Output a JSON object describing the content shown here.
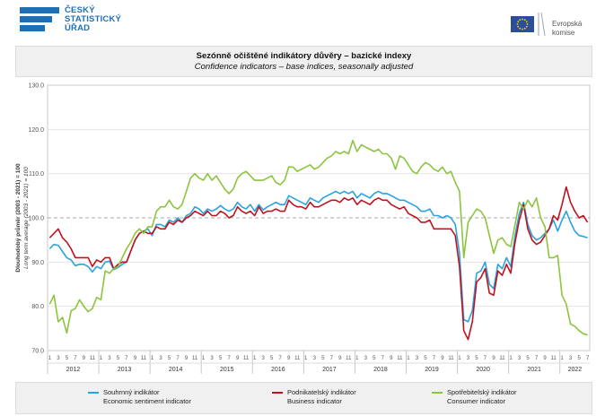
{
  "header": {
    "logo_lines": [
      "ČESKÝ",
      "STATISTICKÝ",
      "ÚŘAD"
    ],
    "eu_text_lines": [
      "Evropská",
      "komise"
    ]
  },
  "title": {
    "cz": "Sezónně očištěné indikátory důvěry – bazické indexy",
    "en": "Confidence indicators – base indices, seasonally adjusted"
  },
  "legend": {
    "items": [
      {
        "label_cz": "Souhrnný indikátor",
        "label_en": "Economic sentiment indicator",
        "color": "#29a3e0"
      },
      {
        "label_cz": "Podnikatelský indikátor",
        "label_en": "Business indicator",
        "color": "#c0121d"
      },
      {
        "label_cz": "Spotřebitelský indikátor",
        "label_en": "Consumer indicator",
        "color": "#8cc43f"
      }
    ]
  },
  "chart_data": {
    "type": "line",
    "ylabel_main": "Dlouhodobý průměr (2003 - 2021) = 100",
    "ylabel_sub": "Long term average (2003 - 2021) = 100",
    "ylim": [
      70,
      130
    ],
    "yticks": [
      "70.0",
      "80.0",
      "90.0",
      "100.0",
      "110.0",
      "120.0",
      "130.0"
    ],
    "reference_line": 100,
    "years": [
      "2012",
      "2013",
      "2014",
      "2015",
      "2016",
      "2017",
      "2018",
      "2019",
      "2020",
      "2021",
      "2022"
    ],
    "start": "2012-01",
    "end": "2022-07",
    "month_tick_labels": [
      "1",
      "3",
      "5",
      "7",
      "9",
      "11"
    ],
    "series": [
      {
        "name": "Souhrnný indikátor / Economic sentiment indicator",
        "color": "#29a3e0",
        "values": [
          93.0,
          94.0,
          93.8,
          92.4,
          91.0,
          90.5,
          89.2,
          89.5,
          89.5,
          89.0,
          87.8,
          89.0,
          88.5,
          90.0,
          90.2,
          88.3,
          88.8,
          89.5,
          90.0,
          92.5,
          95.0,
          96.5,
          97.0,
          97.5,
          96.0,
          98.5,
          98.5,
          98.0,
          99.5,
          99.0,
          100.0,
          99.0,
          100.5,
          101.0,
          102.5,
          102.0,
          101.0,
          102.0,
          101.5,
          102.0,
          102.8,
          102.0,
          101.5,
          102.0,
          103.5,
          102.5,
          102.0,
          103.0,
          101.5,
          103.0,
          101.8,
          102.5,
          103.0,
          103.5,
          103.0,
          103.0,
          105.0,
          104.5,
          104.0,
          103.5,
          103.0,
          104.5,
          104.0,
          103.5,
          104.5,
          105.0,
          105.5,
          106.0,
          105.5,
          106.0,
          105.5,
          106.0,
          104.5,
          105.5,
          105.0,
          104.5,
          105.5,
          106.0,
          105.5,
          105.5,
          105.0,
          104.5,
          104.0,
          104.0,
          103.5,
          103.0,
          102.5,
          101.5,
          101.5,
          102.0,
          100.5,
          100.5,
          100.0,
          100.5,
          100.0,
          98.5,
          92.0,
          77.0,
          76.5,
          79.0,
          87.5,
          88.0,
          90.0,
          85.0,
          84.0,
          89.5,
          88.5,
          91.0,
          89.0,
          96.0,
          101.0,
          103.5,
          98.5,
          96.0,
          95.0,
          95.5,
          96.5,
          97.5,
          99.5,
          97.0,
          99.5,
          101.5,
          99.0,
          97.0,
          96.0,
          95.8,
          95.5
        ]
      },
      {
        "name": "Podnikatelský indikátor / Business indicator",
        "color": "#c0121d",
        "values": [
          95.5,
          96.5,
          97.5,
          95.5,
          94.5,
          93.0,
          91.0,
          91.0,
          91.0,
          91.0,
          89.0,
          90.5,
          90.0,
          91.0,
          91.0,
          88.5,
          89.5,
          90.0,
          90.0,
          92.5,
          95.0,
          96.5,
          97.0,
          96.5,
          96.5,
          98.0,
          97.5,
          97.5,
          99.0,
          98.5,
          99.5,
          99.0,
          100.0,
          100.5,
          101.5,
          101.0,
          100.5,
          101.5,
          100.5,
          100.5,
          101.5,
          101.0,
          100.0,
          100.5,
          102.5,
          101.5,
          101.0,
          101.5,
          100.5,
          102.5,
          101.0,
          101.5,
          101.5,
          102.0,
          101.5,
          101.5,
          104.0,
          103.0,
          102.5,
          102.5,
          102.0,
          103.5,
          102.5,
          102.5,
          103.0,
          103.5,
          104.0,
          104.0,
          103.5,
          104.5,
          104.0,
          104.5,
          103.0,
          104.0,
          103.5,
          103.0,
          104.0,
          104.5,
          104.0,
          104.0,
          103.0,
          102.5,
          102.0,
          102.5,
          101.0,
          100.5,
          100.0,
          99.0,
          99.0,
          99.5,
          97.5,
          97.5,
          97.5,
          97.5,
          97.5,
          96.0,
          89.0,
          74.5,
          72.5,
          76.5,
          85.5,
          86.5,
          88.5,
          83.0,
          82.5,
          88.0,
          87.0,
          89.5,
          87.5,
          94.5,
          99.5,
          103.0,
          97.5,
          95.0,
          94.0,
          94.5,
          96.0,
          97.5,
          100.5,
          99.5,
          103.0,
          107.0,
          103.5,
          101.5,
          100.0,
          100.5,
          99.0
        ]
      },
      {
        "name": "Spotřebitelský indikátor / Consumer indicator",
        "color": "#8cc43f",
        "values": [
          80.5,
          82.5,
          76.5,
          77.5,
          74.0,
          79.0,
          79.5,
          81.5,
          80.0,
          78.8,
          79.5,
          82.0,
          81.5,
          88.0,
          87.5,
          88.5,
          89.0,
          91.0,
          93.0,
          94.5,
          96.5,
          97.5,
          96.5,
          98.0,
          98.0,
          101.5,
          102.5,
          102.5,
          104.0,
          102.5,
          102.0,
          103.0,
          106.0,
          109.0,
          110.0,
          109.0,
          108.5,
          110.0,
          108.5,
          109.5,
          108.0,
          106.5,
          105.5,
          106.5,
          109.0,
          110.0,
          110.5,
          109.5,
          108.5,
          108.5,
          108.5,
          109.0,
          109.5,
          108.0,
          107.5,
          108.5,
          111.5,
          111.5,
          110.5,
          111.0,
          111.5,
          112.0,
          111.0,
          111.5,
          112.5,
          113.5,
          114.0,
          115.0,
          114.5,
          115.0,
          114.5,
          117.5,
          115.0,
          116.5,
          116.0,
          115.5,
          115.0,
          115.5,
          114.5,
          114.5,
          113.5,
          111.0,
          114.0,
          113.5,
          112.0,
          110.5,
          110.0,
          111.5,
          112.5,
          112.0,
          111.0,
          110.5,
          111.5,
          110.0,
          110.5,
          108.0,
          106.0,
          91.0,
          99.0,
          100.5,
          102.0,
          101.5,
          100.0,
          96.0,
          92.0,
          95.0,
          95.5,
          94.0,
          93.5,
          98.5,
          103.5,
          102.0,
          104.0,
          102.5,
          104.5,
          100.0,
          98.0,
          91.0,
          91.0,
          91.5,
          82.5,
          80.5,
          76.0,
          75.5,
          74.5,
          73.8,
          73.5
        ]
      }
    ]
  }
}
